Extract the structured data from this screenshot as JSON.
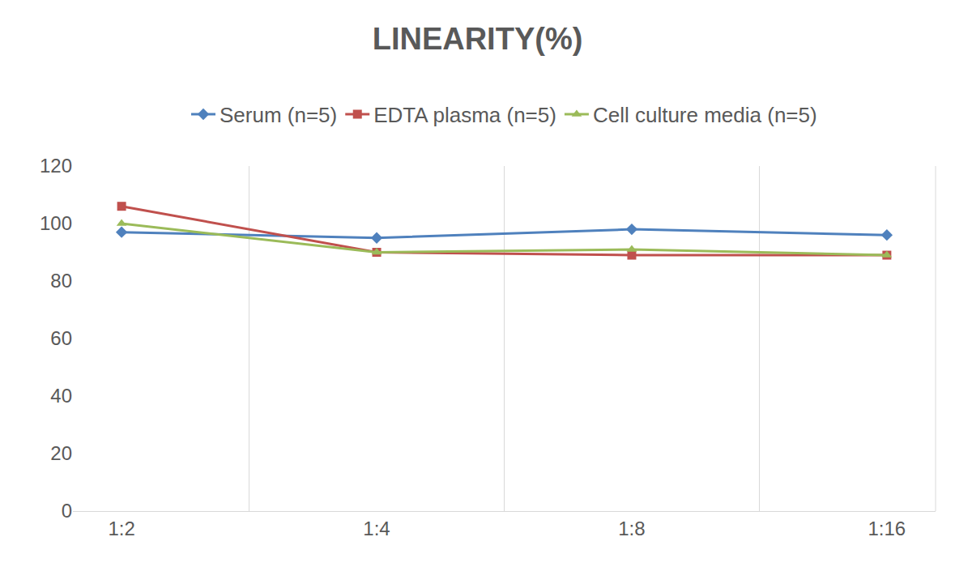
{
  "chart_data": {
    "type": "line",
    "title": "LINEARITY(%)",
    "categories": [
      "1:2",
      "1:4",
      "1:8",
      "1:16"
    ],
    "series": [
      {
        "name": "Serum (n=5)",
        "color": "#4f81bd",
        "marker": "diamond",
        "values": [
          97,
          95,
          98,
          96
        ]
      },
      {
        "name": "EDTA plasma (n=5)",
        "color": "#c0504d",
        "marker": "square",
        "values": [
          106,
          90,
          89,
          89
        ]
      },
      {
        "name": "Cell culture media (n=5)",
        "color": "#9bbb59",
        "marker": "triangle-up",
        "values": [
          100,
          90,
          91,
          89
        ]
      }
    ],
    "ylim": [
      0,
      120
    ],
    "yticks": [
      0,
      20,
      40,
      60,
      80,
      100,
      120
    ],
    "grid": "x",
    "legend": "top"
  }
}
